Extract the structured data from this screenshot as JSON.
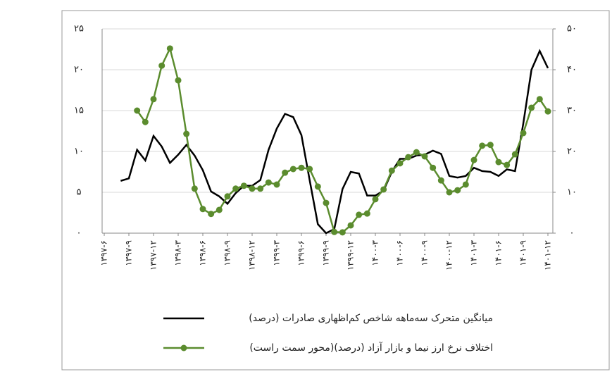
{
  "chart_data": {
    "type": "line",
    "categories": [
      "۱۳۹۷-۶",
      null,
      null,
      "۱۳۹۷-۹",
      null,
      null,
      "۱۳۹۷-۱۲",
      null,
      null,
      "۱۳۹۸-۳",
      null,
      null,
      "۱۳۹۸-۶",
      null,
      null,
      "۱۳۹۸-۹",
      null,
      null,
      "۱۳۹۸-۱۲",
      null,
      null,
      "۱۳۹۹-۳",
      null,
      null,
      "۱۳۹۹-۶",
      null,
      null,
      "۱۳۹۹-۹",
      null,
      null,
      "۱۳۹۹-۱۲",
      null,
      null,
      "۱۴۰۰-۳",
      null,
      null,
      "۱۴۰۰-۶",
      null,
      null,
      "۱۴۰۰-۹",
      null,
      null,
      "۱۴۰۰-۱۲",
      null,
      null,
      "۱۴۰۱-۳",
      null,
      null,
      "۱۴۰۱-۶",
      null,
      null,
      "۱۴۰۱-۹",
      null,
      null,
      "۱۴۰۱-۱۲"
    ],
    "series": [
      {
        "name": "میانگین متحرک سه‌ماهه شاخص کم‌اظهاری صادرات (درصد)",
        "color": "#000000",
        "axis": "y",
        "values": [
          null,
          null,
          6.4,
          6.7,
          10.2,
          8.9,
          11.9,
          10.6,
          8.6,
          9.6,
          10.8,
          9.5,
          7.7,
          5.1,
          4.5,
          3.6,
          4.9,
          5.8,
          5.8,
          6.5,
          10.2,
          12.8,
          14.6,
          14.2,
          12.0,
          6.5,
          1.1,
          0,
          0.5,
          5.4,
          7.5,
          7.3,
          4.6,
          4.6,
          5.2,
          7.5,
          9.1,
          9.1,
          9.5,
          9.6,
          10.1,
          9.7,
          7.0,
          6.8,
          7.0,
          8.0,
          7.6,
          7.5,
          7.0,
          7.8,
          7.6,
          13.4,
          20.0,
          22.3,
          20.2
        ]
      },
      {
        "name": "اختلاف نرخ ارز نیما و بازار آزاد (درصد)(محور سمت راست)",
        "color": "#5b8c2e",
        "axis": "y2",
        "values": [
          null,
          null,
          null,
          null,
          30.0,
          27.2,
          32.8,
          41.0,
          45.2,
          37.4,
          24.3,
          10.9,
          5.9,
          4.7,
          5.7,
          9.0,
          10.9,
          11.6,
          10.9,
          10.9,
          12.4,
          11.9,
          14.8,
          15.7,
          16.0,
          15.7,
          11.4,
          7.4,
          0.3,
          0.2,
          1.9,
          4.5,
          4.8,
          8.3,
          10.7,
          15.3,
          17.1,
          18.6,
          19.8,
          18.8,
          16.0,
          12.9,
          10.0,
          10.5,
          11.9,
          17.9,
          21.4,
          21.6,
          17.4,
          16.7,
          19.3,
          24.5,
          30.7,
          32.8,
          29.8
        ]
      }
    ],
    "ylim": [
      0,
      25
    ],
    "yticks": [
      {
        "value": 0,
        "label": "۰"
      },
      {
        "value": 5,
        "label": "۵"
      },
      {
        "value": 10,
        "label": "۱۰"
      },
      {
        "value": 15,
        "label": "۱۵"
      },
      {
        "value": 20,
        "label": "۲۰"
      },
      {
        "value": 25,
        "label": "۲۵"
      }
    ],
    "y2lim": [
      0,
      50
    ],
    "y2ticks": [
      {
        "value": 0,
        "label": "۰"
      },
      {
        "value": 10,
        "label": "۱۰"
      },
      {
        "value": 20,
        "label": "۲۰"
      },
      {
        "value": 30,
        "label": "۳۰"
      },
      {
        "value": 40,
        "label": "۴۰"
      },
      {
        "value": 50,
        "label": "۵۰"
      }
    ],
    "grid": true
  }
}
